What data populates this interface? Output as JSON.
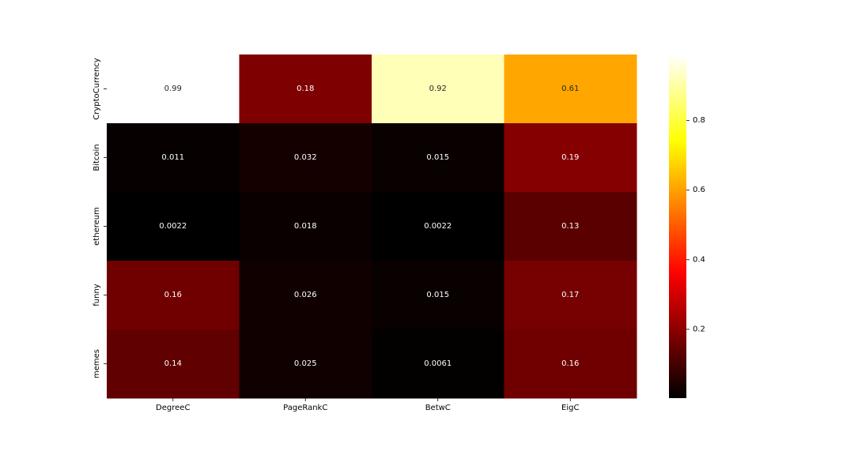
{
  "chart_data": {
    "type": "heatmap",
    "x_categories": [
      "DegreeC",
      "PageRankC",
      "BetwC",
      "EigC"
    ],
    "y_categories": [
      "CryptoCurrency",
      "Bitcoin",
      "ethereum",
      "funny",
      "memes"
    ],
    "values": [
      [
        0.99,
        0.18,
        0.92,
        0.61
      ],
      [
        0.011,
        0.032,
        0.015,
        0.19
      ],
      [
        0.0022,
        0.018,
        0.0022,
        0.13
      ],
      [
        0.16,
        0.026,
        0.015,
        0.17
      ],
      [
        0.14,
        0.025,
        0.0061,
        0.16
      ]
    ],
    "annotations": [
      [
        "0.99",
        "0.18",
        "0.92",
        "0.61"
      ],
      [
        "0.011",
        "0.032",
        "0.015",
        "0.19"
      ],
      [
        "0.0022",
        "0.018",
        "0.0022",
        "0.13"
      ],
      [
        "0.16",
        "0.026",
        "0.015",
        "0.17"
      ],
      [
        "0.14",
        "0.025",
        "0.0061",
        "0.16"
      ]
    ],
    "colormap": "hot",
    "vmin": 0.0022,
    "vmax": 0.99,
    "colorbar_ticks": [
      0.2,
      0.4,
      0.6,
      0.8
    ],
    "colorbar_tick_labels": [
      "0.2",
      "0.4",
      "0.6",
      "0.8"
    ],
    "title": "",
    "xlabel": "",
    "ylabel": ""
  }
}
